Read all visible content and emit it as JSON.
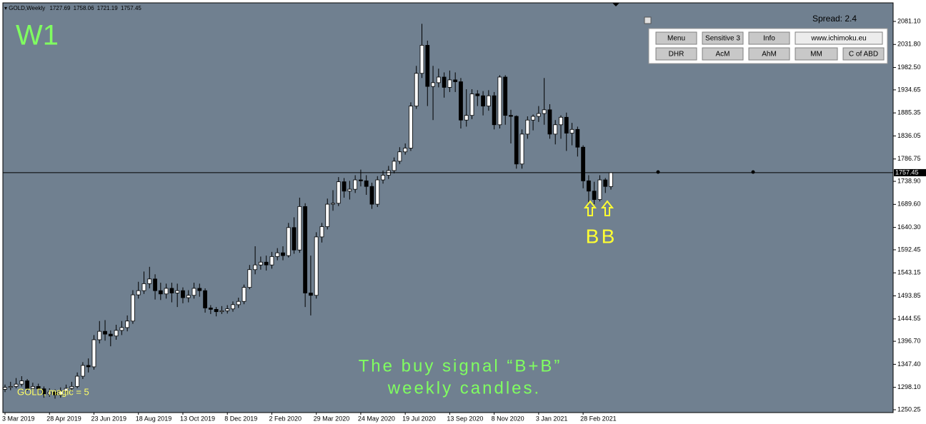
{
  "chart_data": {
    "type": "candlestick",
    "header": "GOLD,Weekly",
    "timeframe": "W1",
    "categories": [
      "3 Mar 2019",
      null,
      null,
      null,
      null,
      null,
      null,
      null,
      "28 Apr 2019",
      null,
      null,
      null,
      null,
      null,
      null,
      null,
      "23 Jun 2019",
      null,
      null,
      null,
      null,
      null,
      null,
      null,
      "18 Aug 2019",
      null,
      null,
      null,
      null,
      null,
      null,
      null,
      "13 Oct 2019",
      null,
      null,
      null,
      null,
      null,
      null,
      null,
      "8 Dec 2019",
      null,
      null,
      null,
      null,
      null,
      null,
      null,
      "2 Feb 2020",
      null,
      null,
      null,
      null,
      null,
      null,
      null,
      "29 Mar 2020",
      null,
      null,
      null,
      null,
      null,
      null,
      null,
      "24 May 2020",
      null,
      null,
      null,
      null,
      null,
      null,
      null,
      "19 Jul 2020",
      null,
      null,
      null,
      null,
      null,
      null,
      null,
      "13 Sep 2020",
      null,
      null,
      null,
      null,
      null,
      null,
      null,
      "8 Nov 2020",
      null,
      null,
      null,
      null,
      null,
      null,
      null,
      "3 Jan 2021",
      null,
      null,
      null,
      null,
      null,
      null,
      null,
      "28 Feb 2021",
      null,
      null,
      null,
      null,
      null
    ],
    "open": [
      1294,
      1298,
      1300,
      1305,
      1312,
      1296,
      1300,
      1295,
      1284,
      1288,
      1282,
      1290,
      1296,
      1300,
      1322,
      1345,
      1342,
      1400,
      1418,
      1412,
      1408,
      1420,
      1426,
      1440,
      1496,
      1505,
      1520,
      1530,
      1505,
      1498,
      1510,
      1500,
      1505,
      1490,
      1495,
      1510,
      1505,
      1468,
      1465,
      1460,
      1462,
      1466,
      1475,
      1482,
      1512,
      1550,
      1560,
      1566,
      1560,
      1578,
      1586,
      1580,
      1640,
      1592,
      1685,
      1500,
      1495,
      1620,
      1642,
      1690,
      1692,
      1738,
      1718,
      1722,
      1742,
      1740,
      1728,
      1690,
      1742,
      1752,
      1762,
      1782,
      1802,
      1810,
      1900,
      1970,
      2030,
      1942,
      1950,
      1962,
      1940,
      1956,
      1952,
      1870,
      1880,
      1926,
      1922,
      1900,
      1922,
      1860,
      1962,
      1880,
      1878,
      1776,
      1840,
      1870,
      1878,
      1884,
      1892,
      1840,
      1860,
      1876,
      1842,
      1850,
      1812,
      1740,
      1718,
      1700,
      1742,
      1727.69
    ],
    "high": [
      1304,
      1310,
      1318,
      1322,
      1316,
      1308,
      1306,
      1300,
      1296,
      1294,
      1298,
      1304,
      1310,
      1330,
      1352,
      1360,
      1410,
      1440,
      1442,
      1420,
      1432,
      1440,
      1452,
      1506,
      1524,
      1546,
      1556,
      1540,
      1522,
      1520,
      1522,
      1520,
      1512,
      1506,
      1522,
      1520,
      1510,
      1474,
      1470,
      1472,
      1474,
      1482,
      1490,
      1518,
      1560,
      1600,
      1578,
      1580,
      1588,
      1596,
      1600,
      1650,
      1662,
      1704,
      1692,
      1580,
      1630,
      1650,
      1702,
      1720,
      1748,
      1746,
      1740,
      1752,
      1764,
      1752,
      1736,
      1750,
      1762,
      1772,
      1790,
      1812,
      1820,
      1908,
      1986,
      2076,
      2040,
      1986,
      1980,
      1972,
      1976,
      1972,
      1960,
      1936,
      1936,
      1934,
      1932,
      1934,
      1930,
      1966,
      1966,
      1892,
      1880,
      1850,
      1878,
      1882,
      1900,
      1960,
      1904,
      1870,
      1880,
      1886,
      1864,
      1856,
      1816,
      1752,
      1738,
      1752,
      1746,
      1758.06
    ],
    "low": [
      1288,
      1292,
      1296,
      1300,
      1290,
      1290,
      1286,
      1276,
      1278,
      1274,
      1276,
      1284,
      1290,
      1296,
      1316,
      1330,
      1336,
      1392,
      1398,
      1386,
      1400,
      1410,
      1418,
      1434,
      1488,
      1498,
      1510,
      1486,
      1485,
      1488,
      1480,
      1470,
      1478,
      1480,
      1488,
      1492,
      1458,
      1455,
      1450,
      1455,
      1456,
      1460,
      1468,
      1476,
      1508,
      1540,
      1550,
      1548,
      1552,
      1570,
      1570,
      1576,
      1584,
      1586,
      1470,
      1452,
      1488,
      1608,
      1636,
      1676,
      1686,
      1704,
      1700,
      1714,
      1728,
      1710,
      1680,
      1684,
      1734,
      1744,
      1756,
      1776,
      1796,
      1804,
      1894,
      1960,
      1900,
      1870,
      1940,
      1918,
      1930,
      1930,
      1852,
      1856,
      1872,
      1900,
      1880,
      1890,
      1850,
      1852,
      1860,
      1820,
      1766,
      1766,
      1830,
      1848,
      1866,
      1860,
      1830,
      1818,
      1830,
      1804,
      1816,
      1792,
      1724,
      1690,
      1690,
      1696,
      1714,
      1721.19
    ],
    "close": [
      1298,
      1300,
      1305,
      1312,
      1296,
      1300,
      1295,
      1284,
      1288,
      1282,
      1290,
      1296,
      1300,
      1322,
      1345,
      1342,
      1400,
      1418,
      1412,
      1408,
      1420,
      1426,
      1440,
      1496,
      1505,
      1520,
      1530,
      1505,
      1498,
      1510,
      1500,
      1505,
      1490,
      1495,
      1510,
      1505,
      1468,
      1465,
      1460,
      1462,
      1466,
      1475,
      1482,
      1512,
      1550,
      1560,
      1566,
      1560,
      1578,
      1586,
      1580,
      1640,
      1592,
      1685,
      1500,
      1495,
      1620,
      1642,
      1690,
      1692,
      1738,
      1718,
      1722,
      1742,
      1740,
      1728,
      1690,
      1742,
      1752,
      1762,
      1782,
      1802,
      1810,
      1900,
      1970,
      2030,
      1942,
      1950,
      1962,
      1940,
      1956,
      1952,
      1870,
      1880,
      1926,
      1922,
      1900,
      1922,
      1860,
      1962,
      1880,
      1878,
      1776,
      1840,
      1870,
      1878,
      1884,
      1892,
      1840,
      1860,
      1876,
      1842,
      1850,
      1812,
      1740,
      1718,
      1700,
      1742,
      1728,
      1757.45
    ],
    "ylim": [
      1244.14,
      2120.81
    ],
    "yticks": [
      {
        "value": 2081.1,
        "label": "2081.10"
      },
      {
        "value": 2031.8,
        "label": "2031.80"
      },
      {
        "value": 1982.5,
        "label": "1982.50"
      },
      1934.65,
      1885.35,
      1836.05,
      1786.75,
      {
        "value": 1738.9,
        "label": "1738.90"
      },
      {
        "value": 1689.6,
        "label": "1689.60"
      },
      {
        "value": 1640.3,
        "label": "1640.30"
      },
      1592.45,
      1543.15,
      1493.85,
      1444.55,
      {
        "value": 1396.7,
        "label": "1396.70"
      },
      {
        "value": 1347.4,
        "label": "1347.40"
      },
      {
        "value": 1298.1,
        "label": "1298.10"
      },
      1250.25
    ],
    "grid": false,
    "up_color": "#ffffff",
    "down_color": "#000000",
    "background": "#708090",
    "signals": [
      "B",
      "B"
    ],
    "annotation": [
      "The buy signal “B+B”",
      "weekly candles."
    ],
    "magic": "GOLD, magic = 5"
  },
  "panel": {
    "spread": "Spread: 2.4",
    "buttons": [
      [
        "Menu",
        "Sensitive 3",
        "Info",
        "www.ichimoku.eu"
      ],
      [
        "DHR",
        "AcM",
        "AhM",
        "MM",
        "C of ABD"
      ]
    ]
  }
}
